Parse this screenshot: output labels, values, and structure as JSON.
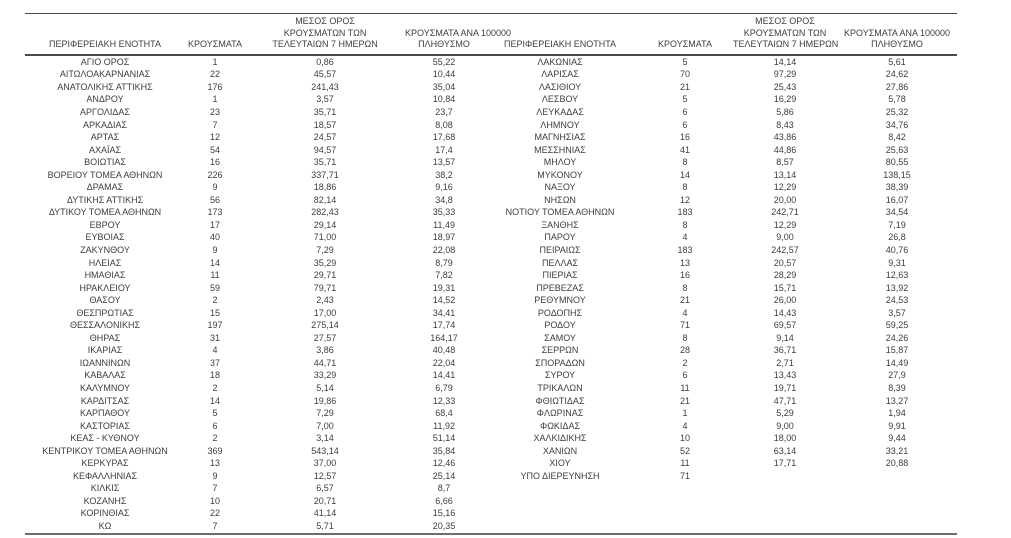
{
  "colors": {
    "text": "#3d3d3d",
    "rule_dark": "#4a4a4a",
    "rule_bottom": "#6e6e6e"
  },
  "table": {
    "columns": {
      "region": "ΠΕΡΙΦΕΡΕΙΑΚΗ ΕΝΟΤΗΤΑ",
      "cases": "ΚΡΟΥΣΜΑΤΑ",
      "avg7_lines": [
        "ΜΕΣΟΣ ΟΡΟΣ",
        "ΚΡΟΥΣΜΑΤΩΝ ΤΩΝ",
        "ΤΕΛΕΥΤΑΙΩΝ 7 ΗΜΕΡΩΝ"
      ],
      "per100k_lines": [
        "ΚΡΟΥΣΜΑΤΑ ΑΝΑ 100000",
        "ΠΛΗΘΥΣΜΟ"
      ]
    },
    "left_rows": [
      {
        "region": "ΑΓΙΟ ΟΡΟΣ",
        "cases": "1",
        "avg7": "0,86",
        "per100k": "55,22"
      },
      {
        "region": "ΑΙΤΩΛΟΑΚΑΡΝΑΝΙΑΣ",
        "cases": "22",
        "avg7": "45,57",
        "per100k": "10,44"
      },
      {
        "region": "ΑΝΑΤΟΛΙΚΗΣ ΑΤΤΙΚΗΣ",
        "cases": "176",
        "avg7": "241,43",
        "per100k": "35,04"
      },
      {
        "region": "ΑΝΔΡΟΥ",
        "cases": "1",
        "avg7": "3,57",
        "per100k": "10,84"
      },
      {
        "region": "ΑΡΓΟΛΙΔΑΣ",
        "cases": "23",
        "avg7": "35,71",
        "per100k": "23,7"
      },
      {
        "region": "ΑΡΚΑΔΙΑΣ",
        "cases": "7",
        "avg7": "18,57",
        "per100k": "8,08"
      },
      {
        "region": "ΑΡΤΑΣ",
        "cases": "12",
        "avg7": "24,57",
        "per100k": "17,68"
      },
      {
        "region": "ΑΧΑΪΑΣ",
        "cases": "54",
        "avg7": "94,57",
        "per100k": "17,4"
      },
      {
        "region": "ΒΟΙΩΤΙΑΣ",
        "cases": "16",
        "avg7": "35,71",
        "per100k": "13,57"
      },
      {
        "region": "ΒΟΡΕΙΟΥ ΤΟΜΕΑ ΑΘΗΝΩΝ",
        "cases": "226",
        "avg7": "337,71",
        "per100k": "38,2"
      },
      {
        "region": "ΔΡΑΜΑΣ",
        "cases": "9",
        "avg7": "18,86",
        "per100k": "9,16"
      },
      {
        "region": "ΔΥΤΙΚΗΣ ΑΤΤΙΚΗΣ",
        "cases": "56",
        "avg7": "82,14",
        "per100k": "34,8"
      },
      {
        "region": "ΔΥΤΙΚΟΥ ΤΟΜΕΑ ΑΘΗΝΩΝ",
        "cases": "173",
        "avg7": "282,43",
        "per100k": "35,33"
      },
      {
        "region": "ΕΒΡΟΥ",
        "cases": "17",
        "avg7": "29,14",
        "per100k": "11,49"
      },
      {
        "region": "ΕΥΒΟΙΑΣ",
        "cases": "40",
        "avg7": "71,00",
        "per100k": "18,97"
      },
      {
        "region": "ΖΑΚΥΝΘΟΥ",
        "cases": "9",
        "avg7": "7,29",
        "per100k": "22,08"
      },
      {
        "region": "ΗΛΕΙΑΣ",
        "cases": "14",
        "avg7": "35,29",
        "per100k": "8,79"
      },
      {
        "region": "ΗΜΑΘΙΑΣ",
        "cases": "11",
        "avg7": "29,71",
        "per100k": "7,82"
      },
      {
        "region": "ΗΡΑΚΛΕΙΟΥ",
        "cases": "59",
        "avg7": "79,71",
        "per100k": "19,31"
      },
      {
        "region": "ΘΑΣΟΥ",
        "cases": "2",
        "avg7": "2,43",
        "per100k": "14,52"
      },
      {
        "region": "ΘΕΣΠΡΩΤΙΑΣ",
        "cases": "15",
        "avg7": "17,00",
        "per100k": "34,41"
      },
      {
        "region": "ΘΕΣΣΑΛΟΝΙΚΗΣ",
        "cases": "197",
        "avg7": "275,14",
        "per100k": "17,74"
      },
      {
        "region": "ΘΗΡΑΣ",
        "cases": "31",
        "avg7": "27,57",
        "per100k": "164,17"
      },
      {
        "region": "ΙΚΑΡΙΑΣ",
        "cases": "4",
        "avg7": "3,86",
        "per100k": "40,48"
      },
      {
        "region": "ΙΩΑΝΝΙΝΩΝ",
        "cases": "37",
        "avg7": "44,71",
        "per100k": "22,04"
      },
      {
        "region": "ΚΑΒΑΛΑΣ",
        "cases": "18",
        "avg7": "33,29",
        "per100k": "14,41"
      },
      {
        "region": "ΚΑΛΥΜΝΟΥ",
        "cases": "2",
        "avg7": "5,14",
        "per100k": "6,79"
      },
      {
        "region": "ΚΑΡΔΙΤΣΑΣ",
        "cases": "14",
        "avg7": "19,86",
        "per100k": "12,33"
      },
      {
        "region": "ΚΑΡΠΑΘΟΥ",
        "cases": "5",
        "avg7": "7,29",
        "per100k": "68,4"
      },
      {
        "region": "ΚΑΣΤΟΡΙΑΣ",
        "cases": "6",
        "avg7": "7,00",
        "per100k": "11,92"
      },
      {
        "region": "ΚΕΑΣ - ΚΥΘΝΟΥ",
        "cases": "2",
        "avg7": "3,14",
        "per100k": "51,14"
      },
      {
        "region": "ΚΕΝΤΡΙΚΟΥ ΤΟΜΕΑ ΑΘΗΝΩΝ",
        "cases": "369",
        "avg7": "543,14",
        "per100k": "35,84"
      },
      {
        "region": "ΚΕΡΚΥΡΑΣ",
        "cases": "13",
        "avg7": "37,00",
        "per100k": "12,46"
      },
      {
        "region": "ΚΕΦΑΛΛΗΝΙΑΣ",
        "cases": "9",
        "avg7": "12,57",
        "per100k": "25,14"
      },
      {
        "region": "ΚΙΛΚΙΣ",
        "cases": "7",
        "avg7": "6,57",
        "per100k": "8,7"
      },
      {
        "region": "ΚΟΖΑΝΗΣ",
        "cases": "10",
        "avg7": "20,71",
        "per100k": "6,66"
      },
      {
        "region": "ΚΟΡΙΝΘΙΑΣ",
        "cases": "22",
        "avg7": "41,14",
        "per100k": "15,16"
      },
      {
        "region": "ΚΩ",
        "cases": "7",
        "avg7": "5,71",
        "per100k": "20,35"
      }
    ],
    "right_rows": [
      {
        "region": "ΛΑΚΩΝΙΑΣ",
        "cases": "5",
        "avg7": "14,14",
        "per100k": "5,61"
      },
      {
        "region": "ΛΑΡΙΣΑΣ",
        "cases": "70",
        "avg7": "97,29",
        "per100k": "24,62"
      },
      {
        "region": "ΛΑΣΙΘΙΟΥ",
        "cases": "21",
        "avg7": "25,43",
        "per100k": "27,86"
      },
      {
        "region": "ΛΕΣΒΟΥ",
        "cases": "5",
        "avg7": "16,29",
        "per100k": "5,78"
      },
      {
        "region": "ΛΕΥΚΑΔΑΣ",
        "cases": "6",
        "avg7": "5,86",
        "per100k": "25,32"
      },
      {
        "region": "ΛΗΜΝΟΥ",
        "cases": "6",
        "avg7": "8,43",
        "per100k": "34,76"
      },
      {
        "region": "ΜΑΓΝΗΣΙΑΣ",
        "cases": "16",
        "avg7": "43,86",
        "per100k": "8,42"
      },
      {
        "region": "ΜΕΣΣΗΝΙΑΣ",
        "cases": "41",
        "avg7": "44,86",
        "per100k": "25,63"
      },
      {
        "region": "ΜΗΛΟΥ",
        "cases": "8",
        "avg7": "8,57",
        "per100k": "80,55"
      },
      {
        "region": "ΜΥΚΟΝΟΥ",
        "cases": "14",
        "avg7": "13,14",
        "per100k": "138,15"
      },
      {
        "region": "ΝΑΞΟΥ",
        "cases": "8",
        "avg7": "12,29",
        "per100k": "38,39"
      },
      {
        "region": "ΝΗΣΩΝ",
        "cases": "12",
        "avg7": "20,00",
        "per100k": "16,07"
      },
      {
        "region": "ΝΟΤΙΟΥ ΤΟΜΕΑ ΑΘΗΝΩΝ",
        "cases": "183",
        "avg7": "242,71",
        "per100k": "34,54"
      },
      {
        "region": "ΞΑΝΘΗΣ",
        "cases": "8",
        "avg7": "12,29",
        "per100k": "7,19"
      },
      {
        "region": "ΠΑΡΟΥ",
        "cases": "4",
        "avg7": "9,00",
        "per100k": "26,8"
      },
      {
        "region": "ΠΕΙΡΑΙΩΣ",
        "cases": "183",
        "avg7": "242,57",
        "per100k": "40,76"
      },
      {
        "region": "ΠΕΛΛΑΣ",
        "cases": "13",
        "avg7": "20,57",
        "per100k": "9,31"
      },
      {
        "region": "ΠΙΕΡΙΑΣ",
        "cases": "16",
        "avg7": "28,29",
        "per100k": "12,63"
      },
      {
        "region": "ΠΡΕΒΕΖΑΣ",
        "cases": "8",
        "avg7": "15,71",
        "per100k": "13,92"
      },
      {
        "region": "ΡΕΘΥΜΝΟΥ",
        "cases": "21",
        "avg7": "26,00",
        "per100k": "24,53"
      },
      {
        "region": "ΡΟΔΟΠΗΣ",
        "cases": "4",
        "avg7": "14,43",
        "per100k": "3,57"
      },
      {
        "region": "ΡΟΔΟΥ",
        "cases": "71",
        "avg7": "69,57",
        "per100k": "59,25"
      },
      {
        "region": "ΣΑΜΟΥ",
        "cases": "8",
        "avg7": "9,14",
        "per100k": "24,26"
      },
      {
        "region": "ΣΕΡΡΩΝ",
        "cases": "28",
        "avg7": "36,71",
        "per100k": "15,87"
      },
      {
        "region": "ΣΠΟΡΑΔΩΝ",
        "cases": "2",
        "avg7": "2,71",
        "per100k": "14,49"
      },
      {
        "region": "ΣΥΡΟΥ",
        "cases": "6",
        "avg7": "13,43",
        "per100k": "27,9"
      },
      {
        "region": "ΤΡΙΚΑΛΩΝ",
        "cases": "11",
        "avg7": "19,71",
        "per100k": "8,39"
      },
      {
        "region": "ΦΘΙΩΤΙΔΑΣ",
        "cases": "21",
        "avg7": "47,71",
        "per100k": "13,27"
      },
      {
        "region": "ΦΛΩΡΙΝΑΣ",
        "cases": "1",
        "avg7": "5,29",
        "per100k": "1,94"
      },
      {
        "region": "ΦΩΚΙΔΑΣ",
        "cases": "4",
        "avg7": "9,00",
        "per100k": "9,91"
      },
      {
        "region": "ΧΑΛΚΙΔΙΚΗΣ",
        "cases": "10",
        "avg7": "18,00",
        "per100k": "9,44"
      },
      {
        "region": "ΧΑΝΙΩΝ",
        "cases": "52",
        "avg7": "63,14",
        "per100k": "33,21"
      },
      {
        "region": "ΧΙΟΥ",
        "cases": "11",
        "avg7": "17,71",
        "per100k": "20,88"
      },
      {
        "region": "ΥΠΟ ΔΙΕΡΕΥΝΗΣΗ",
        "cases": "71",
        "avg7": "",
        "per100k": ""
      }
    ]
  }
}
